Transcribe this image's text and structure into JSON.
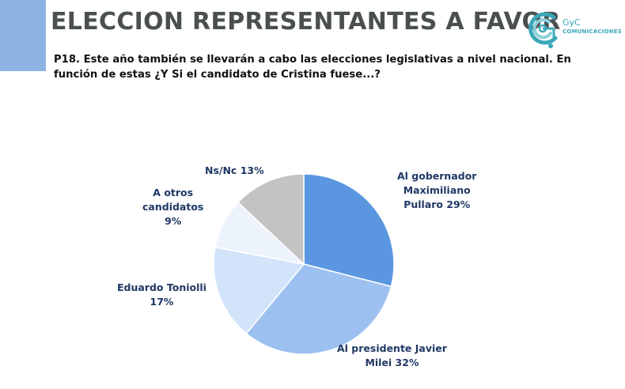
{
  "slide": {
    "title": "ELECCION REPRESENTANTES A FAVOR",
    "question": "P18. Este año también se llevarán a cabo las elecciones legislativas a nivel nacional. En función de estas ¿Y Si el candidato de Cristina fuese...?",
    "accent_color": "#8db3e2"
  },
  "logo": {
    "brand": "GyC",
    "subtitle": "COMUNICACIONES",
    "color": "#3aa8b8"
  },
  "chart_data": {
    "type": "pie",
    "title": "",
    "slices": [
      {
        "label_lines": [
          "Al gobernador",
          "Maximiliano",
          "Pullaro 29%"
        ],
        "name": "Al gobernador Maximiliano Pullaro",
        "value": 29,
        "color": "#5b97e0"
      },
      {
        "label_lines": [
          "Al presidente Javier",
          "Milei 32%"
        ],
        "name": "Al presidente Javier Milei",
        "value": 32,
        "color": "#9cc0f0"
      },
      {
        "label_lines": [
          "Eduardo Toniolli",
          "17%"
        ],
        "name": "Eduardo Toniolli",
        "value": 17,
        "color": "#d2e4fa"
      },
      {
        "label_lines": [
          "A otros",
          "candidatos",
          "9%"
        ],
        "name": "A otros candidatos",
        "value": 9,
        "color": "#ecf3fd"
      },
      {
        "label_lines": [
          "Ns/Nc 13%"
        ],
        "name": "Ns/Nc",
        "value": 13,
        "color": "#c3c3c3"
      }
    ]
  }
}
